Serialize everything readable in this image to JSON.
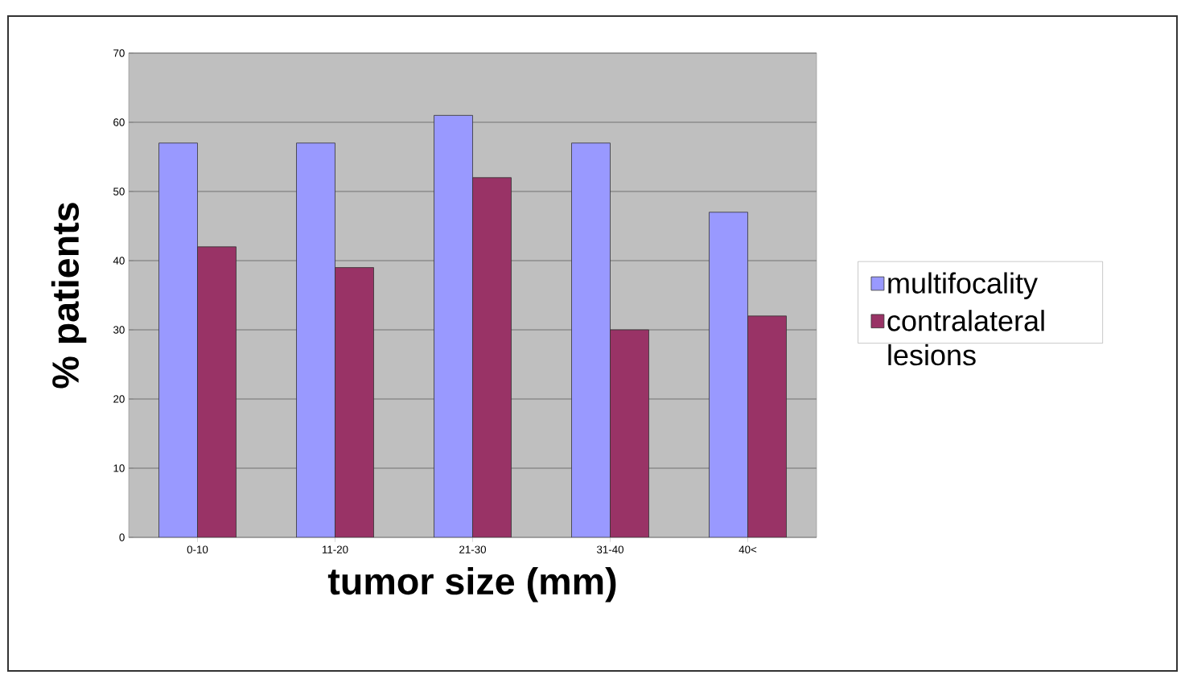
{
  "chart_data": {
    "type": "bar",
    "xlabel": "tumor size (mm)",
    "ylabel": "% patients",
    "categories": [
      "0-10",
      "11-20",
      "21-30",
      "31-40",
      "40<"
    ],
    "series": [
      {
        "name": "multifocality",
        "color": "#9999ff",
        "values": [
          57,
          57,
          61,
          57,
          47
        ]
      },
      {
        "name": "contralateral lesions",
        "color": "#993366",
        "values": [
          42,
          39,
          52,
          30,
          32
        ]
      }
    ],
    "ylim": [
      0,
      70
    ],
    "yticks": [
      0,
      10,
      20,
      30,
      40,
      50,
      60,
      70
    ],
    "grid": "y",
    "legend": "right"
  }
}
